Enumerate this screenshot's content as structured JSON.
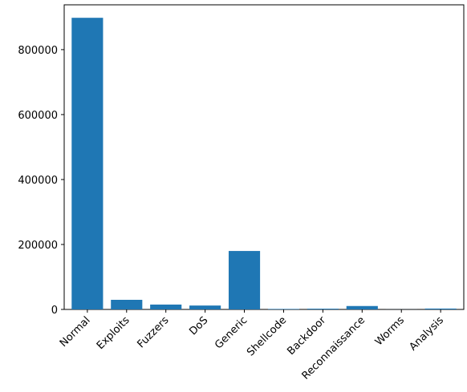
{
  "chart_data": {
    "type": "bar",
    "categories": [
      "Normal",
      "Exploits",
      "Fuzzers",
      "DoS",
      "Generic",
      "Shellcode",
      "Backdoor",
      "Reconnaissance",
      "Worms",
      "Analysis"
    ],
    "values": [
      898000,
      29600,
      15000,
      12000,
      180000,
      1500,
      2300,
      10500,
      170,
      2700
    ],
    "color": "#1f77b4",
    "ylim": [
      0,
      938000
    ],
    "yticks": [
      0,
      200000,
      400000,
      600000,
      800000
    ]
  }
}
